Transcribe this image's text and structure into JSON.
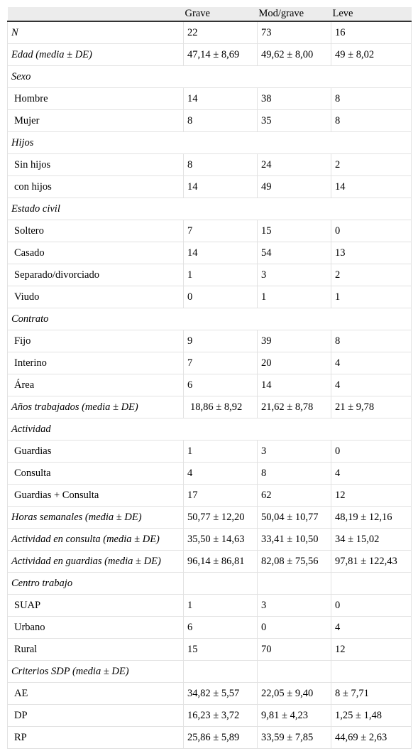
{
  "header": [
    "",
    "Grave",
    "Mod/grave",
    "Leve"
  ],
  "rows": [
    {
      "label": "N",
      "style": "it",
      "cells": [
        "22",
        "73",
        "16"
      ]
    },
    {
      "label": "Edad (media ± DE)",
      "style": "it",
      "cells": [
        "47,14 ± 8,69",
        "49,62 ± 8,00",
        "49 ± 8,02"
      ]
    },
    {
      "label": "Sexo",
      "style": "it",
      "section": true
    },
    {
      "label": "Hombre",
      "style": "ind",
      "cells": [
        "14",
        "38",
        "8"
      ]
    },
    {
      "label": "Mujer",
      "style": "ind",
      "cells": [
        "8",
        "35",
        "8"
      ]
    },
    {
      "label": "Hijos",
      "style": "it",
      "section": true
    },
    {
      "label": "Sin hijos",
      "style": "ind",
      "cells": [
        "8",
        "24",
        "2"
      ]
    },
    {
      "label": "con hijos",
      "style": "ind",
      "cells": [
        "14",
        "49",
        "14"
      ]
    },
    {
      "label": "Estado civil",
      "style": "it",
      "section": true
    },
    {
      "label": "Soltero",
      "style": "ind",
      "cells": [
        "7",
        "15",
        "0"
      ]
    },
    {
      "label": "Casado",
      "style": "ind",
      "cells": [
        "14",
        "54",
        "13"
      ]
    },
    {
      "label": "Separado/divorciado",
      "style": "ind",
      "cells": [
        "1",
        "3",
        "2"
      ]
    },
    {
      "label": "Viudo",
      "style": "ind",
      "cells": [
        "0",
        "1",
        "1"
      ]
    },
    {
      "label": "Contrato",
      "style": "it",
      "section": true
    },
    {
      "label": "Fijo",
      "style": "ind",
      "cells": [
        "9",
        "39",
        "8"
      ]
    },
    {
      "label": "Interino",
      "style": "ind",
      "cells": [
        "7",
        "20",
        "4"
      ]
    },
    {
      "label": "Área",
      "style": "ind",
      "cells": [
        "6",
        "14",
        "4"
      ]
    },
    {
      "label": "Años trabajados (media ± DE)",
      "style": "it",
      "cells": [
        "18,86 ± 8,92",
        "21,62 ± 8,78",
        "21 ± 9,78"
      ],
      "padFirst": true
    },
    {
      "label": "Actividad",
      "style": "it",
      "section": true
    },
    {
      "label": "Guardias",
      "style": "ind",
      "cells": [
        "1",
        "3",
        "0"
      ]
    },
    {
      "label": "Consulta",
      "style": "ind",
      "cells": [
        "4",
        "8",
        "4"
      ]
    },
    {
      "label": "Guardias + Consulta",
      "style": "ind",
      "cells": [
        "17",
        "62",
        "12"
      ]
    },
    {
      "label": "Horas semanales (media ± DE)",
      "style": "it",
      "cells": [
        "50,77 ± 12,20",
        "50,04 ± 10,77",
        "48,19 ± 12,16"
      ]
    },
    {
      "label": "Actividad en consulta (media ± DE)",
      "style": "it",
      "cells": [
        "35,50 ± 14,63",
        "33,41 ± 10,50",
        "34 ± 15,02"
      ]
    },
    {
      "label": "Actividad en guardias (media ± DE)",
      "style": "it",
      "cells": [
        "96,14 ± 86,81",
        "82,08 ± 75,56",
        "97,81 ± 122,43"
      ]
    },
    {
      "label": "Centro trabajo",
      "style": "it",
      "cells": [
        "",
        "",
        ""
      ]
    },
    {
      "label": "SUAP",
      "style": "ind",
      "cells": [
        "1",
        "3",
        "0"
      ]
    },
    {
      "label": "Urbano",
      "style": "ind",
      "cells": [
        "6",
        "0",
        "4"
      ]
    },
    {
      "label": "Rural",
      "style": "ind",
      "cells": [
        "15",
        "70",
        "12"
      ]
    },
    {
      "label": "Criterios SDP (media ± DE)",
      "style": "it",
      "cells": [
        "",
        "",
        ""
      ]
    },
    {
      "label": "AE",
      "style": "ind",
      "cells": [
        "34,82 ± 5,57",
        "22,05 ± 9,40",
        "8 ± 7,71"
      ]
    },
    {
      "label": "DP",
      "style": "ind",
      "cells": [
        "16,23 ± 3,72",
        "9,81 ± 4,23",
        "1,25 ± 1,48"
      ]
    },
    {
      "label": "RP",
      "style": "ind",
      "cells": [
        "25,86 ± 5,89",
        "33,59 ± 7,85",
        "44,69 ± 2,63"
      ]
    }
  ]
}
